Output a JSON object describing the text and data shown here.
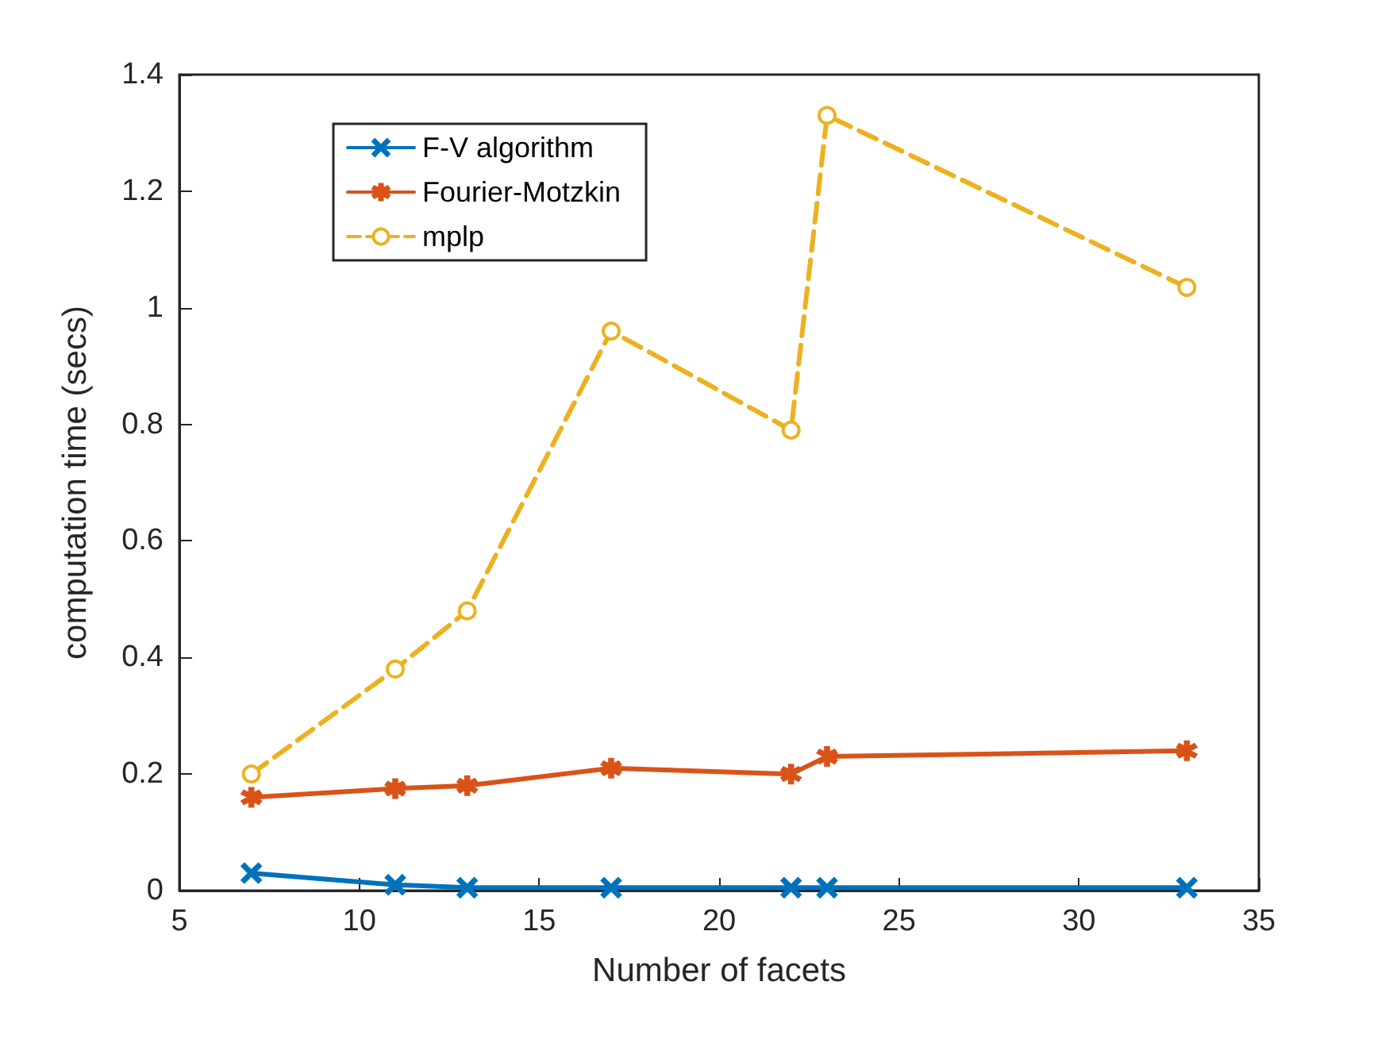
{
  "chart_data": {
    "type": "line",
    "xlabel": "Number of facets",
    "ylabel": "computation time (secs)",
    "x": [
      7,
      11,
      13,
      17,
      22,
      23,
      33
    ],
    "series": [
      {
        "name": "F-V algorithm",
        "color": "#0072bd",
        "marker": "cross",
        "line_style": "solid",
        "values": [
          0.03,
          0.01,
          0.005,
          0.005,
          0.005,
          0.005,
          0.005
        ]
      },
      {
        "name": "Fourier-Motzkin",
        "color": "#d95319",
        "marker": "star",
        "line_style": "solid",
        "values": [
          0.16,
          0.175,
          0.18,
          0.21,
          0.2,
          0.23,
          0.24
        ]
      },
      {
        "name": "mplp",
        "color": "#edb120",
        "marker": "circle",
        "line_style": "dashed",
        "values": [
          0.2,
          0.38,
          0.48,
          0.96,
          0.79,
          1.33,
          1.035
        ]
      }
    ],
    "xlim": [
      5,
      35
    ],
    "xticks": [
      5,
      10,
      15,
      20,
      25,
      30,
      35
    ],
    "ylim": [
      0,
      1.4
    ],
    "yticks": [
      0,
      0.2,
      0.4,
      0.6,
      0.8,
      1,
      1.2,
      1.4
    ],
    "legend": "top left"
  }
}
